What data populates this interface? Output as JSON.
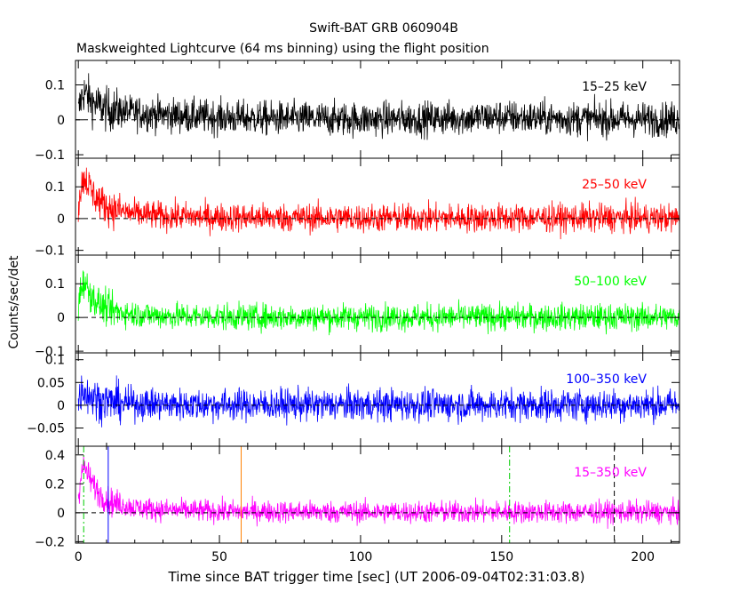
{
  "title": "Swift-BAT GRB 060904B",
  "subtitle": "Maskweighted Lightcurve (64 ms binning) using the flight position",
  "xlabel": "Time since BAT trigger time [sec] (UT 2006-09-04T02:31:03.8)",
  "ylabel": "Counts/sec/det",
  "colors": {
    "axes": "#000000",
    "dashed": "#000000"
  },
  "x_ticks": [
    "0",
    "50",
    "100",
    "150",
    "200"
  ],
  "chart_data": [
    {
      "type": "line",
      "name": "15-25 keV",
      "label": "15–25 keV",
      "color": "#000000",
      "xlim": [
        -1,
        213
      ],
      "ylim": [
        -0.11,
        0.17
      ],
      "yticks": [
        -0.1,
        0,
        0.1
      ],
      "ytick_labels": [
        "−0.1",
        "0",
        "0.1"
      ],
      "x": [
        0,
        1,
        2,
        3,
        5,
        10,
        20,
        40,
        60,
        80,
        100,
        120,
        140,
        150,
        160,
        180,
        200,
        212
      ],
      "values": [
        0.02,
        0.06,
        0.08,
        0.07,
        0.05,
        0.03,
        0.02,
        0.01,
        0.005,
        0.003,
        0.002,
        0.003,
        0.006,
        0.008,
        0.005,
        0.003,
        0.002,
        0.001
      ],
      "noise": 0.035
    },
    {
      "type": "line",
      "name": "25-50 keV",
      "label": "25–50 keV",
      "color": "#ff0000",
      "xlim": [
        -1,
        213
      ],
      "ylim": [
        -0.115,
        0.19
      ],
      "yticks": [
        -0.1,
        0,
        0.1
      ],
      "ytick_labels": [
        "−0.1",
        "0",
        "0.1"
      ],
      "x": [
        0,
        1,
        2,
        3,
        5,
        8,
        12,
        20,
        30,
        50,
        100,
        150,
        200,
        212
      ],
      "values": [
        0.04,
        0.1,
        0.13,
        0.12,
        0.08,
        0.05,
        0.03,
        0.015,
        0.008,
        0.004,
        0.002,
        0.002,
        0.002,
        0.001
      ],
      "noise": 0.032
    },
    {
      "type": "line",
      "name": "50-100 keV",
      "label": "50–100 keV",
      "color": "#00ff00",
      "xlim": [
        -1,
        213
      ],
      "ylim": [
        -0.105,
        0.185
      ],
      "yticks": [
        -0.1,
        0,
        0.1
      ],
      "ytick_labels": [
        "−0.1",
        "0",
        "0.1"
      ],
      "x": [
        0,
        1,
        2,
        3,
        5,
        8,
        12,
        20,
        30,
        50,
        100,
        150,
        200,
        212
      ],
      "values": [
        0.03,
        0.09,
        0.11,
        0.09,
        0.06,
        0.035,
        0.02,
        0.01,
        0.005,
        0.002,
        0.001,
        0.001,
        0.001,
        0.001
      ],
      "noise": 0.028
    },
    {
      "type": "line",
      "name": "100-350 keV",
      "label": "100–350 keV",
      "color": "#0000ff",
      "xlim": [
        -1,
        213
      ],
      "ylim": [
        -0.09,
        0.115
      ],
      "yticks": [
        -0.05,
        0,
        0.05,
        0.1
      ],
      "ytick_labels": [
        "−0.05",
        "0",
        "0.05",
        "0.1"
      ],
      "x": [
        0,
        1,
        2,
        4,
        8,
        15,
        30,
        60,
        100,
        150,
        200,
        212
      ],
      "values": [
        0.01,
        0.03,
        0.035,
        0.02,
        0.01,
        0.005,
        0.002,
        0.001,
        0.001,
        0.001,
        0.001,
        0.001
      ],
      "noise": 0.025
    },
    {
      "type": "line",
      "name": "15-350 keV",
      "label": "15–350 keV",
      "color": "#ff00ff",
      "xlim": [
        -1,
        213
      ],
      "ylim": [
        -0.21,
        0.46
      ],
      "yticks": [
        -0.2,
        0,
        0.2,
        0.4
      ],
      "ytick_labels": [
        "−0.2",
        "0",
        "0.2",
        "0.4"
      ],
      "x": [
        0,
        1,
        2,
        3,
        5,
        8,
        12,
        20,
        30,
        50,
        100,
        150,
        200,
        212
      ],
      "values": [
        0.1,
        0.28,
        0.32,
        0.28,
        0.2,
        0.12,
        0.07,
        0.035,
        0.02,
        0.01,
        0.005,
        0.005,
        0.004,
        0.003
      ],
      "noise": 0.055,
      "vlines": [
        {
          "x": 1.9,
          "color": "#00cc00",
          "style": "dashdot"
        },
        {
          "x": 10.6,
          "color": "#0000ff",
          "style": "solid"
        },
        {
          "x": 57.7,
          "color": "#ff8000",
          "style": "solid"
        },
        {
          "x": 152.8,
          "color": "#00cc00",
          "style": "dashdot"
        },
        {
          "x": 189.9,
          "color": "#000000",
          "style": "dashed"
        }
      ]
    }
  ]
}
